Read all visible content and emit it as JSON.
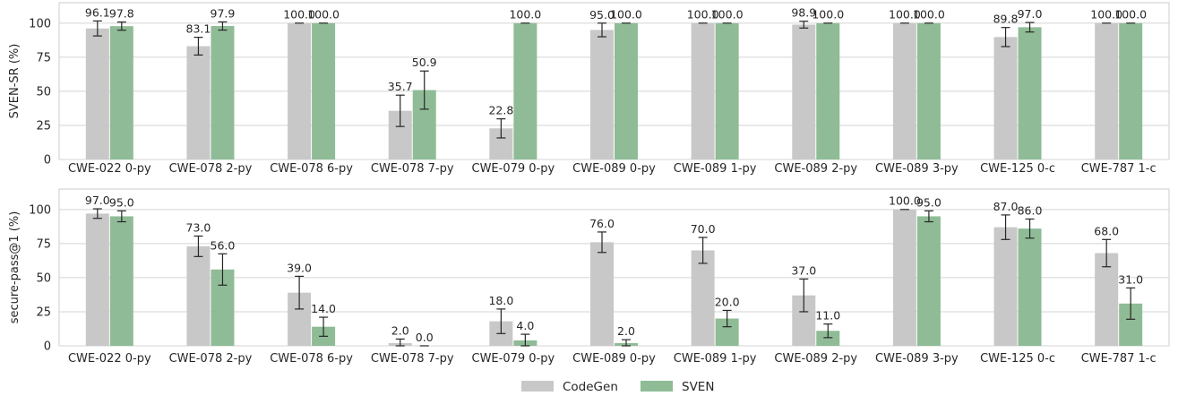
{
  "legend": [
    {
      "name": "CodeGen",
      "color": "#c8c8c8"
    },
    {
      "name": "SVEN",
      "color": "#8fbc96"
    }
  ],
  "chart_data": [
    {
      "type": "bar",
      "ylabel": "SVEN-SR (%)",
      "ylim": [
        0,
        115
      ],
      "yticks": [
        0,
        25,
        50,
        75,
        100
      ],
      "grid": true,
      "categories": [
        "CWE-022 0-py",
        "CWE-078 2-py",
        "CWE-078 6-py",
        "CWE-078 7-py",
        "CWE-079 0-py",
        "CWE-089 0-py",
        "CWE-089 1-py",
        "CWE-089 2-py",
        "CWE-089 3-py",
        "CWE-125 0-c",
        "CWE-787 1-c"
      ],
      "series": [
        {
          "name": "CodeGen",
          "values": [
            96.1,
            83.1,
            100.0,
            35.7,
            null,
            95.0,
            100.0,
            98.9,
            100.0,
            89.8,
            100.0
          ],
          "errors": [
            5.5,
            6.5,
            0.3,
            11.5,
            0,
            5.0,
            0.3,
            2.5,
            0.3,
            7.0,
            0.3
          ],
          "value_labels": [
            "96.1",
            "83.1",
            "100.0",
            "35.7",
            "",
            "95.0",
            "100.0",
            "98.9",
            "100.0",
            "89.8",
            "100.0"
          ]
        },
        {
          "name": "SVEN",
          "values": [
            97.8,
            97.9,
            100.0,
            50.9,
            100.0,
            100.0,
            100.0,
            100.0,
            100.0,
            97.0,
            100.0
          ],
          "errors": [
            3.0,
            3.0,
            0.3,
            14.0,
            0.3,
            0.3,
            0.3,
            0.3,
            0.3,
            3.5,
            0.3
          ],
          "value_labels": [
            "97.8",
            "97.9",
            "100.0",
            "50.9",
            "100.0",
            "100.0",
            "100.0",
            "100.0",
            "100.0",
            "97.0",
            "100.0"
          ]
        }
      ],
      "extra_codegen": {
        "index": 4,
        "value": 22.8,
        "error": 7.0,
        "label": "22.8"
      }
    },
    {
      "type": "bar",
      "ylabel": "secure-pass@1 (%)",
      "ylim": [
        0,
        115
      ],
      "yticks": [
        0,
        25,
        50,
        75,
        100
      ],
      "grid": true,
      "categories": [
        "CWE-022 0-py",
        "CWE-078 2-py",
        "CWE-078 6-py",
        "CWE-078 7-py",
        "CWE-079 0-py",
        "CWE-089 0-py",
        "CWE-089 1-py",
        "CWE-089 2-py",
        "CWE-089 3-py",
        "CWE-125 0-c",
        "CWE-787 1-c"
      ],
      "series": [
        {
          "name": "CodeGen",
          "values": [
            97.0,
            73.0,
            39.0,
            2.0,
            18.0,
            76.0,
            70.0,
            37.0,
            100.0,
            87.0,
            68.0
          ],
          "errors": [
            3.5,
            7.5,
            12.0,
            3.0,
            9.0,
            7.5,
            9.5,
            12.0,
            0.3,
            9.0,
            10.0
          ],
          "value_labels": [
            "97.0",
            "73.0",
            "39.0",
            "2.0",
            "18.0",
            "76.0",
            "70.0",
            "37.0",
            "100.0",
            "87.0",
            "68.0"
          ]
        },
        {
          "name": "SVEN",
          "values": [
            95.0,
            56.0,
            14.0,
            0.0,
            4.0,
            2.0,
            20.0,
            11.0,
            95.0,
            86.0,
            31.0
          ],
          "errors": [
            4.0,
            11.5,
            7.0,
            0,
            4.5,
            2.5,
            6.0,
            5.0,
            4.0,
            7.0,
            11.5
          ],
          "value_labels": [
            "95.0",
            "56.0",
            "14.0",
            "0.0",
            "4.0",
            "2.0",
            "20.0",
            "11.0",
            "95.0",
            "86.0",
            "31.0"
          ]
        }
      ]
    }
  ]
}
